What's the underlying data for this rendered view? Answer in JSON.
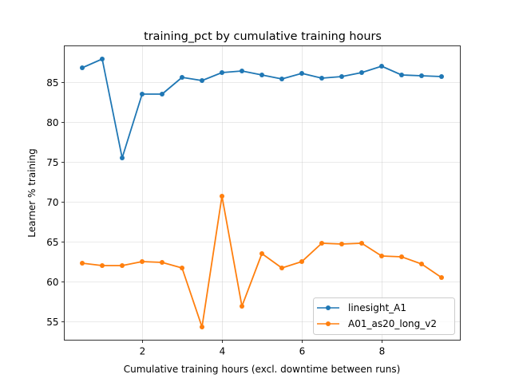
{
  "chart_data": {
    "type": "line",
    "title": "training_pct by cumulative training hours",
    "xlabel": "Cumulative training hours (excl. downtime between runs)",
    "ylabel": "Learner % training",
    "xlim": [
      0.06,
      9.98
    ],
    "ylim": [
      52.3,
      89.7
    ],
    "xticks": [
      2,
      4,
      6,
      8
    ],
    "yticks": [
      55,
      60,
      65,
      70,
      75,
      80,
      85
    ],
    "grid": true,
    "legend_position": "lower right",
    "x": [
      0.5,
      1.0,
      1.5,
      2.0,
      2.5,
      3.0,
      3.5,
      4.0,
      4.5,
      5.0,
      5.5,
      6.0,
      6.5,
      7.0,
      7.5,
      8.0,
      8.5,
      9.0,
      9.5
    ],
    "series": [
      {
        "name": "linesight_A1",
        "color": "#1f77b4",
        "values": [
          86.8,
          87.9,
          75.5,
          83.5,
          83.5,
          85.6,
          85.2,
          86.2,
          86.4,
          85.9,
          85.4,
          86.1,
          85.5,
          85.7,
          86.2,
          87.0,
          85.9,
          85.8,
          85.7
        ]
      },
      {
        "name": "A01_as20_long_v2",
        "color": "#ff7f0e",
        "values": [
          62.3,
          62.0,
          62.0,
          62.5,
          62.4,
          61.7,
          54.3,
          70.7,
          56.9,
          63.5,
          61.7,
          62.5,
          64.8,
          64.7,
          64.8,
          63.2,
          63.1,
          62.2,
          60.5
        ]
      }
    ]
  }
}
